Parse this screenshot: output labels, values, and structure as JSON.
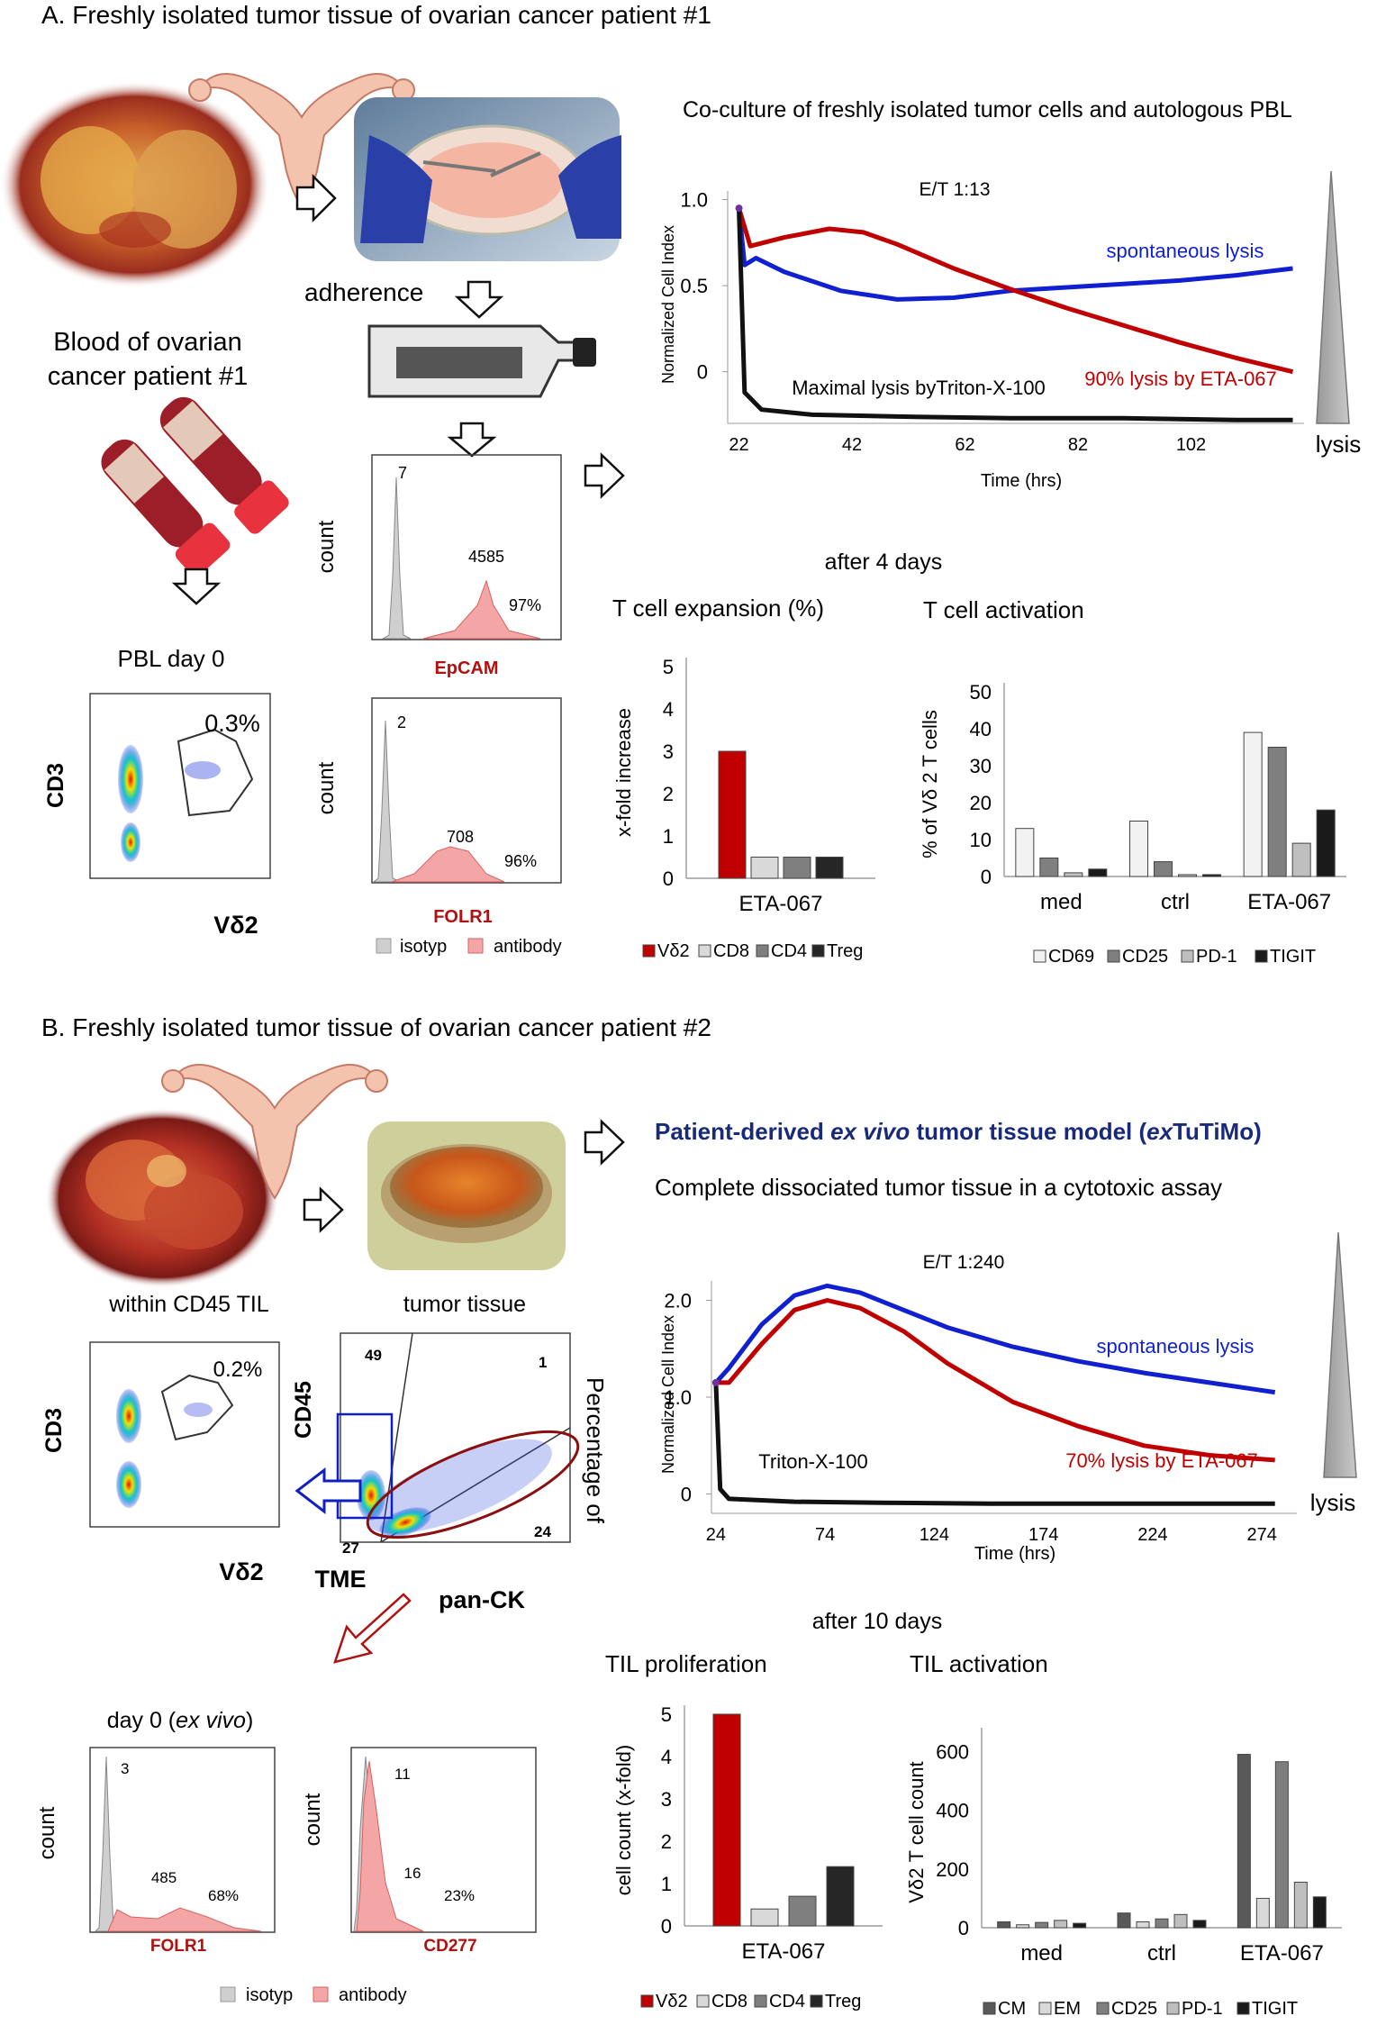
{
  "panelA": {
    "title": "A. Freshly isolated tumor tissue of ovarian cancer patient #1",
    "adherence": "adherence",
    "blood_label_1": "Blood of ovarian",
    "blood_label_2": "cancer patient #1",
    "pbl_title": "PBL day 0",
    "pbl_gate_pct": "0.3%",
    "pbl_ylabel": "CD3",
    "pbl_xlabel": "Vδ2",
    "epcam": {
      "ylabel": "count",
      "xlabel": "EpCAM",
      "iso_value": "7",
      "ab_value": "4585",
      "pct": "97%"
    },
    "folr1": {
      "ylabel": "count",
      "xlabel": "FOLR1",
      "iso_value": "2",
      "ab_value": "708",
      "pct": "96%"
    },
    "hist_legend": {
      "isotyp": "isotyp",
      "antibody": "antibody"
    },
    "coculture_title": "Co-culture of  freshly isolated tumor cells and autologous PBL",
    "rtca": {
      "et": "E/T 1:13",
      "ylabel": "Normalized Cell Index",
      "xlabel": "Time (hrs)",
      "yticks": [
        "1.0",
        "0.5",
        "0"
      ],
      "xticks": [
        "22",
        "42",
        "62",
        "82",
        "102"
      ],
      "spont": "spontaneous lysis",
      "eta": "90% lysis by ETA-067",
      "triton": "Maximal lysis byTriton-X-100",
      "lysis": "lysis"
    },
    "after": "after 4 days",
    "expansion_title": "T cell expansion (%)",
    "activation_title": "T cell activation"
  },
  "panelB": {
    "title": "B. Freshly isolated tumor tissue of ovarian cancer patient #2",
    "model_title_a": "Patient-derived ",
    "model_title_b": "ex vivo",
    "model_title_c": " tumor tissue model (",
    "model_title_d": "ex",
    "model_title_e": "TuTiMo)",
    "model_sub": "Complete dissociated tumor tissue in a cytotoxic assay",
    "til_title": "within CD45 TIL",
    "til_gate": "0.2%",
    "til_ylabel": "CD3",
    "til_xlabel": "Vδ2",
    "tissue_title": "tumor tissue",
    "tissue_q1": "49",
    "tissue_q2": "1",
    "tissue_q3": "27",
    "tissue_q4": "24",
    "tissue_ylabel": "CD45",
    "tissue_xlabel": "pan-CK",
    "tme": "TME",
    "percentage": "Percentage of",
    "day0_a": "day 0 (",
    "day0_b": "ex vivo",
    "day0_c": ")",
    "h_folr1": {
      "ylabel": "count",
      "xlabel": "FOLR1",
      "iso_value": "3",
      "ab_value": "485",
      "pct": "68%"
    },
    "h_cd277": {
      "ylabel": "count",
      "xlabel": "CD277",
      "iso_value": "11",
      "ab_value": "16",
      "pct": "23%"
    },
    "hist_legend": {
      "isotyp": "isotyp",
      "antibody": "antibody"
    },
    "rtca": {
      "et": "E/T 1:240",
      "ylabel": "Normalized Cell Index",
      "xlabel": "Time (hrs)",
      "yticks": [
        "2.0",
        "1.0",
        "0"
      ],
      "xticks": [
        "24",
        "74",
        "124",
        "174",
        "224",
        "274"
      ],
      "spont": "spontaneous lysis",
      "eta": "70% lysis by ETA-067",
      "triton": "Triton-X-100",
      "lysis": "lysis"
    },
    "after": "after 10 days",
    "prolif_title": "TIL proliferation",
    "activation_title": "TIL activation"
  },
  "colors": {
    "red": "#c00000",
    "blue": "#1020d0",
    "black": "#111111",
    "navy": "#1a2a7a"
  },
  "chart_data": [
    {
      "type": "bar",
      "title": "T cell expansion (%)",
      "ylabel": "x-fold increase",
      "ylim": [
        0,
        5
      ],
      "yticks": [
        "0",
        "1",
        "2",
        "3",
        "4",
        "5"
      ],
      "categories": [
        "ETA-067"
      ],
      "series": [
        {
          "name": "Vδ2",
          "values": [
            3.0
          ]
        },
        {
          "name": "CD8",
          "values": [
            0.5
          ]
        },
        {
          "name": "CD4",
          "values": [
            0.5
          ]
        },
        {
          "name": "Treg",
          "values": [
            0.5
          ]
        }
      ]
    },
    {
      "type": "bar",
      "title": "T cell activation",
      "ylabel": "% of Vδ 2 T cells",
      "ylim": [
        0,
        50
      ],
      "yticks": [
        "0",
        "10",
        "20",
        "30",
        "40",
        "50"
      ],
      "categories": [
        "med",
        "ctrl",
        "ETA-067"
      ],
      "series": [
        {
          "name": "CD69",
          "values": [
            13,
            15,
            39
          ]
        },
        {
          "name": "CD25",
          "values": [
            5,
            4,
            35
          ]
        },
        {
          "name": "PD-1",
          "values": [
            1,
            0.5,
            9
          ]
        },
        {
          "name": "TIGIT",
          "values": [
            2,
            0.5,
            18
          ]
        }
      ]
    },
    {
      "type": "bar",
      "title": "TIL proliferation",
      "ylabel": "cell count (x-fold)",
      "ylim": [
        0,
        5
      ],
      "yticks": [
        "0",
        "1",
        "2",
        "3",
        "4",
        "5"
      ],
      "categories": [
        "ETA-067"
      ],
      "series": [
        {
          "name": "Vδ2",
          "values": [
            5.0
          ]
        },
        {
          "name": "CD8",
          "values": [
            0.4
          ]
        },
        {
          "name": "CD4",
          "values": [
            0.7
          ]
        },
        {
          "name": "Treg",
          "values": [
            1.4
          ]
        }
      ]
    },
    {
      "type": "bar",
      "title": "TIL activation",
      "ylabel": "Vδ2 T cell count",
      "ylim": [
        0,
        650
      ],
      "yticks": [
        "0",
        "200",
        "400",
        "600"
      ],
      "categories": [
        "med",
        "ctrl",
        "ETA-067"
      ],
      "series": [
        {
          "name": "CM",
          "values": [
            20,
            50,
            590
          ]
        },
        {
          "name": "EM",
          "values": [
            10,
            20,
            100
          ]
        },
        {
          "name": "CD25",
          "values": [
            18,
            30,
            565
          ]
        },
        {
          "name": "PD-1",
          "values": [
            25,
            45,
            155
          ]
        },
        {
          "name": "TIGIT",
          "values": [
            15,
            25,
            105
          ]
        }
      ]
    },
    {
      "type": "line",
      "title": "E/T 1:13",
      "xlabel": "Time (hrs)",
      "ylabel": "Normalized Cell Index",
      "xlim": [
        20,
        122
      ],
      "ylim": [
        -0.3,
        1.05
      ],
      "series": [
        {
          "name": "spontaneous lysis",
          "x": [
            22,
            23,
            25,
            30,
            40,
            50,
            60,
            70,
            80,
            90,
            100,
            110,
            120
          ],
          "y": [
            0.95,
            0.62,
            0.66,
            0.58,
            0.47,
            0.42,
            0.43,
            0.47,
            0.49,
            0.51,
            0.53,
            0.56,
            0.6
          ]
        },
        {
          "name": "90% lysis by ETA-067",
          "x": [
            22,
            24,
            30,
            38,
            44,
            50,
            60,
            70,
            80,
            90,
            100,
            110,
            120
          ],
          "y": [
            0.95,
            0.73,
            0.78,
            0.83,
            0.81,
            0.74,
            0.6,
            0.48,
            0.37,
            0.27,
            0.17,
            0.08,
            0.0
          ]
        },
        {
          "name": "Maximal lysis byTriton-X-100",
          "x": [
            22,
            23,
            26,
            35,
            50,
            70,
            90,
            110,
            120
          ],
          "y": [
            0.95,
            -0.12,
            -0.22,
            -0.25,
            -0.26,
            -0.27,
            -0.27,
            -0.28,
            -0.28
          ]
        }
      ]
    },
    {
      "type": "line",
      "title": "E/T 1:240",
      "xlabel": "Time (hrs)",
      "ylabel": "Normalized Cell Index",
      "xlim": [
        22,
        290
      ],
      "ylim": [
        -0.2,
        2.2
      ],
      "series": [
        {
          "name": "spontaneous lysis",
          "x": [
            24,
            30,
            45,
            60,
            75,
            90,
            110,
            130,
            160,
            190,
            220,
            250,
            280
          ],
          "y": [
            1.15,
            1.3,
            1.75,
            2.05,
            2.15,
            2.08,
            1.9,
            1.72,
            1.52,
            1.37,
            1.25,
            1.15,
            1.05
          ]
        },
        {
          "name": "70% lysis by ETA-067",
          "x": [
            24,
            30,
            45,
            60,
            75,
            90,
            110,
            130,
            160,
            190,
            220,
            250,
            280
          ],
          "y": [
            1.15,
            1.15,
            1.55,
            1.9,
            2.0,
            1.92,
            1.68,
            1.35,
            0.95,
            0.7,
            0.5,
            0.4,
            0.35
          ]
        },
        {
          "name": "Triton-X-100",
          "x": [
            24,
            26,
            30,
            60,
            100,
            150,
            200,
            250,
            280
          ],
          "y": [
            1.15,
            0.05,
            -0.05,
            -0.08,
            -0.09,
            -0.1,
            -0.1,
            -0.1,
            -0.1
          ]
        }
      ]
    }
  ]
}
